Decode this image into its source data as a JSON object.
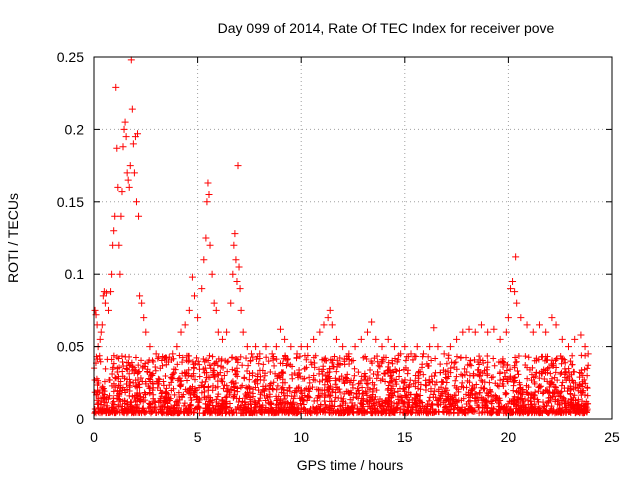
{
  "chart_data": {
    "type": "scatter",
    "title": "Day 099 of 2014, Rate Of TEC Index for receiver pove",
    "xlabel": "GPS time / hours",
    "ylabel": "ROTI / TECUs",
    "xlim": [
      0,
      25
    ],
    "ylim": [
      0,
      0.25
    ],
    "x_ticks": [
      0,
      5,
      10,
      15,
      20,
      25
    ],
    "x_tick_labels": [
      "0",
      "5",
      "10",
      "15",
      "20",
      "25"
    ],
    "y_ticks": [
      0,
      0.05,
      0.1,
      0.15,
      0.2,
      0.25
    ],
    "y_tick_labels": [
      "0",
      "0.05",
      "0.1",
      "0.15",
      "0.2",
      "0.25"
    ],
    "grid": true,
    "marker": "+",
    "series": [
      {
        "name": "ROTI",
        "color": "#ff0000",
        "points": [
          [
            0.05,
            0.075
          ],
          [
            0.1,
            0.072
          ],
          [
            0.15,
            0.065
          ],
          [
            0.2,
            0.05
          ],
          [
            0.3,
            0.055
          ],
          [
            0.35,
            0.06
          ],
          [
            0.4,
            0.065
          ],
          [
            0.45,
            0.085
          ],
          [
            0.5,
            0.088
          ],
          [
            0.55,
            0.08
          ],
          [
            0.6,
            0.087
          ],
          [
            0.7,
            0.075
          ],
          [
            0.8,
            0.088
          ],
          [
            0.85,
            0.1
          ],
          [
            0.9,
            0.12
          ],
          [
            0.95,
            0.13
          ],
          [
            1.0,
            0.14
          ],
          [
            1.05,
            0.229
          ],
          [
            1.1,
            0.187
          ],
          [
            1.15,
            0.16
          ],
          [
            1.2,
            0.12
          ],
          [
            1.25,
            0.1
          ],
          [
            1.3,
            0.14
          ],
          [
            1.35,
            0.157
          ],
          [
            1.4,
            0.188
          ],
          [
            1.45,
            0.2
          ],
          [
            1.5,
            0.205
          ],
          [
            1.55,
            0.195
          ],
          [
            1.6,
            0.17
          ],
          [
            1.65,
            0.165
          ],
          [
            1.7,
            0.16
          ],
          [
            1.75,
            0.175
          ],
          [
            1.8,
            0.248
          ],
          [
            1.85,
            0.214
          ],
          [
            1.9,
            0.19
          ],
          [
            1.95,
            0.17
          ],
          [
            2.0,
            0.195
          ],
          [
            2.05,
            0.15
          ],
          [
            2.1,
            0.197
          ],
          [
            2.15,
            0.14
          ],
          [
            2.2,
            0.085
          ],
          [
            2.3,
            0.08
          ],
          [
            2.4,
            0.07
          ],
          [
            2.5,
            0.06
          ],
          [
            2.7,
            0.05
          ],
          [
            3.0,
            0.045
          ],
          [
            3.5,
            0.042
          ],
          [
            3.8,
            0.045
          ],
          [
            4.0,
            0.05
          ],
          [
            4.2,
            0.06
          ],
          [
            4.4,
            0.065
          ],
          [
            4.6,
            0.075
          ],
          [
            4.75,
            0.098
          ],
          [
            4.85,
            0.085
          ],
          [
            5.0,
            0.07
          ],
          [
            5.2,
            0.09
          ],
          [
            5.3,
            0.11
          ],
          [
            5.4,
            0.125
          ],
          [
            5.45,
            0.15
          ],
          [
            5.5,
            0.163
          ],
          [
            5.55,
            0.155
          ],
          [
            5.6,
            0.12
          ],
          [
            5.7,
            0.1
          ],
          [
            5.8,
            0.08
          ],
          [
            5.9,
            0.075
          ],
          [
            6.0,
            0.06
          ],
          [
            6.2,
            0.055
          ],
          [
            6.4,
            0.06
          ],
          [
            6.6,
            0.08
          ],
          [
            6.7,
            0.1
          ],
          [
            6.75,
            0.12
          ],
          [
            6.8,
            0.128
          ],
          [
            6.85,
            0.11
          ],
          [
            6.9,
            0.095
          ],
          [
            6.95,
            0.175
          ],
          [
            7.0,
            0.105
          ],
          [
            7.05,
            0.09
          ],
          [
            7.1,
            0.075
          ],
          [
            7.2,
            0.06
          ],
          [
            7.4,
            0.05
          ],
          [
            7.6,
            0.045
          ],
          [
            7.8,
            0.05
          ],
          [
            8.0,
            0.045
          ],
          [
            8.3,
            0.05
          ],
          [
            8.6,
            0.045
          ],
          [
            8.8,
            0.05
          ],
          [
            9.0,
            0.062
          ],
          [
            9.2,
            0.055
          ],
          [
            9.5,
            0.05
          ],
          [
            9.8,
            0.045
          ],
          [
            10.0,
            0.05
          ],
          [
            10.3,
            0.05
          ],
          [
            10.6,
            0.055
          ],
          [
            10.9,
            0.06
          ],
          [
            11.1,
            0.065
          ],
          [
            11.3,
            0.07
          ],
          [
            11.4,
            0.075
          ],
          [
            11.5,
            0.065
          ],
          [
            11.7,
            0.055
          ],
          [
            12.0,
            0.05
          ],
          [
            12.3,
            0.045
          ],
          [
            12.6,
            0.05
          ],
          [
            12.9,
            0.055
          ],
          [
            13.2,
            0.06
          ],
          [
            13.4,
            0.067
          ],
          [
            13.6,
            0.055
          ],
          [
            13.9,
            0.05
          ],
          [
            14.2,
            0.055
          ],
          [
            14.5,
            0.05
          ],
          [
            14.8,
            0.045
          ],
          [
            15.0,
            0.05
          ],
          [
            15.3,
            0.045
          ],
          [
            15.6,
            0.05
          ],
          [
            15.9,
            0.045
          ],
          [
            16.2,
            0.05
          ],
          [
            16.4,
            0.063
          ],
          [
            16.6,
            0.05
          ],
          [
            16.9,
            0.045
          ],
          [
            17.2,
            0.05
          ],
          [
            17.5,
            0.055
          ],
          [
            17.8,
            0.06
          ],
          [
            18.1,
            0.062
          ],
          [
            18.4,
            0.06
          ],
          [
            18.7,
            0.065
          ],
          [
            19.0,
            0.06
          ],
          [
            19.3,
            0.062
          ],
          [
            19.6,
            0.055
          ],
          [
            19.9,
            0.06
          ],
          [
            20.0,
            0.07
          ],
          [
            20.1,
            0.09
          ],
          [
            20.2,
            0.095
          ],
          [
            20.3,
            0.088
          ],
          [
            20.35,
            0.112
          ],
          [
            20.4,
            0.08
          ],
          [
            20.6,
            0.07
          ],
          [
            20.9,
            0.065
          ],
          [
            21.2,
            0.06
          ],
          [
            21.5,
            0.065
          ],
          [
            21.8,
            0.06
          ],
          [
            22.1,
            0.07
          ],
          [
            22.3,
            0.065
          ],
          [
            22.6,
            0.055
          ],
          [
            22.9,
            0.05
          ],
          [
            23.2,
            0.055
          ],
          [
            23.5,
            0.058
          ],
          [
            23.7,
            0.05
          ],
          [
            23.85,
            0.045
          ]
        ]
      }
    ]
  }
}
